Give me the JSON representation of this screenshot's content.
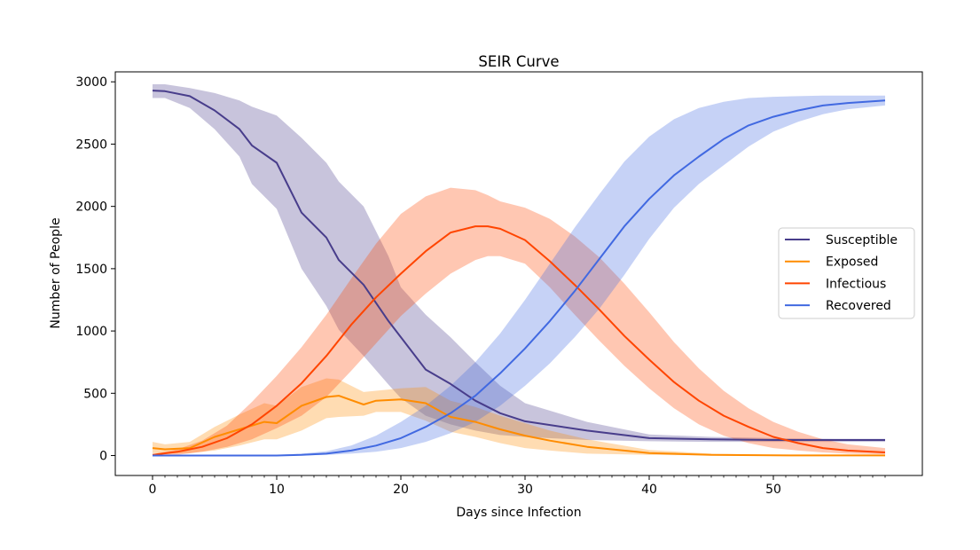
{
  "chart_data": {
    "type": "line",
    "title": "SEIR Curve",
    "xlabel": "Days since Infection",
    "ylabel": "Number of People",
    "xlim": [
      -3,
      62
    ],
    "ylim": [
      -160,
      3080
    ],
    "x_major_ticks": [
      0,
      10,
      20,
      30,
      40,
      50
    ],
    "x_minor_step": 1,
    "x_minor_max": 59,
    "y_ticks": [
      0,
      500,
      1000,
      1500,
      2000,
      2500,
      3000
    ],
    "grid": false,
    "legend_position": "center-right",
    "series": [
      {
        "name": "Susceptible",
        "color": "#483D8B",
        "x": [
          0,
          1,
          3,
          5,
          7,
          8,
          10,
          12,
          14,
          15,
          17,
          19,
          20,
          22,
          24,
          26,
          28,
          30,
          35,
          40,
          45,
          50,
          55,
          59
        ],
        "y": [
          2930,
          2925,
          2885,
          2770,
          2620,
          2490,
          2350,
          1950,
          1750,
          1570,
          1370,
          1080,
          950,
          690,
          575,
          440,
          340,
          275,
          200,
          140,
          130,
          125,
          125,
          125
        ],
        "lower": [
          2870,
          2870,
          2790,
          2620,
          2400,
          2180,
          1980,
          1500,
          1200,
          1010,
          800,
          570,
          460,
          320,
          250,
          200,
          165,
          150,
          125,
          115,
          110,
          110,
          110,
          110
        ],
        "upper": [
          2980,
          2980,
          2950,
          2910,
          2850,
          2800,
          2730,
          2550,
          2350,
          2200,
          2000,
          1600,
          1350,
          1130,
          950,
          750,
          560,
          420,
          270,
          170,
          150,
          140,
          135,
          135
        ]
      },
      {
        "name": "Exposed",
        "color": "#FF8C00",
        "x": [
          0,
          1,
          3,
          5,
          7,
          9,
          10,
          12,
          14,
          15,
          17,
          18,
          20,
          22,
          24,
          26,
          28,
          30,
          32,
          35,
          40,
          45,
          50,
          55,
          59
        ],
        "y": [
          60,
          50,
          60,
          150,
          210,
          270,
          260,
          400,
          470,
          480,
          410,
          440,
          450,
          420,
          310,
          270,
          210,
          160,
          120,
          70,
          20,
          5,
          2,
          1,
          1
        ],
        "lower": [
          20,
          15,
          20,
          40,
          80,
          130,
          130,
          200,
          300,
          310,
          320,
          350,
          350,
          280,
          190,
          150,
          100,
          60,
          40,
          15,
          5,
          1,
          0,
          0,
          0
        ],
        "upper": [
          110,
          90,
          110,
          230,
          330,
          420,
          400,
          550,
          620,
          610,
          510,
          520,
          540,
          550,
          440,
          390,
          320,
          260,
          200,
          130,
          45,
          15,
          5,
          2,
          2
        ]
      },
      {
        "name": "Infectious",
        "color": "#FF4500",
        "x": [
          0,
          2,
          4,
          6,
          8,
          10,
          12,
          14,
          16,
          18,
          20,
          22,
          24,
          26,
          27,
          28,
          30,
          32,
          34,
          36,
          38,
          40,
          42,
          44,
          46,
          48,
          50,
          52,
          54,
          56,
          59
        ],
        "y": [
          5,
          30,
          70,
          140,
          250,
          400,
          580,
          800,
          1050,
          1270,
          1460,
          1640,
          1790,
          1840,
          1840,
          1820,
          1730,
          1560,
          1370,
          1170,
          960,
          770,
          590,
          440,
          320,
          230,
          150,
          100,
          60,
          40,
          25
        ],
        "lower": [
          0,
          5,
          30,
          70,
          130,
          220,
          320,
          470,
          680,
          900,
          1120,
          1300,
          1460,
          1570,
          1600,
          1600,
          1540,
          1350,
          1130,
          920,
          720,
          540,
          380,
          250,
          160,
          100,
          60,
          40,
          25,
          15,
          10
        ],
        "upper": [
          10,
          50,
          120,
          240,
          430,
          640,
          870,
          1130,
          1420,
          1700,
          1940,
          2080,
          2150,
          2130,
          2090,
          2040,
          1990,
          1900,
          1760,
          1590,
          1380,
          1150,
          910,
          700,
          520,
          380,
          270,
          190,
          130,
          90,
          60
        ]
      },
      {
        "name": "Recovered",
        "color": "#4169E1",
        "x": [
          0,
          5,
          10,
          12,
          14,
          16,
          18,
          20,
          22,
          24,
          26,
          28,
          30,
          32,
          34,
          36,
          38,
          40,
          42,
          44,
          46,
          48,
          50,
          52,
          54,
          56,
          59
        ],
        "y": [
          0,
          0,
          0,
          5,
          15,
          40,
          80,
          140,
          230,
          340,
          480,
          660,
          860,
          1080,
          1320,
          1580,
          1840,
          2060,
          2250,
          2400,
          2540,
          2650,
          2720,
          2770,
          2810,
          2830,
          2850
        ],
        "lower": [
          0,
          0,
          0,
          0,
          5,
          15,
          30,
          60,
          110,
          180,
          270,
          400,
          560,
          740,
          950,
          1180,
          1450,
          1740,
          1990,
          2180,
          2330,
          2480,
          2600,
          2680,
          2740,
          2780,
          2810
        ],
        "upper": [
          0,
          0,
          5,
          15,
          35,
          80,
          160,
          270,
          400,
          560,
          750,
          980,
          1250,
          1540,
          1830,
          2100,
          2360,
          2560,
          2700,
          2790,
          2840,
          2870,
          2880,
          2885,
          2890,
          2890,
          2890
        ]
      }
    ]
  }
}
